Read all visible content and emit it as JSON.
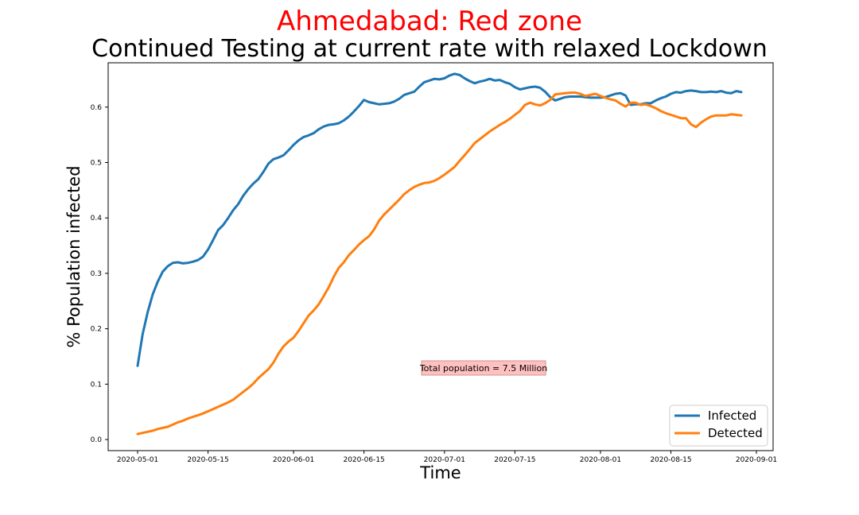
{
  "title": "Ahmedabad: Red zone",
  "subtitle": "Continued Testing at current rate with relaxed Lockdown",
  "annotation": "Total population = 7.5 Million",
  "colors": {
    "title": "#ff0000",
    "infected": "#1f77b4",
    "detected": "#ff7f0e",
    "annotation_bg": "#ffc0c0"
  },
  "chart_data": {
    "type": "line",
    "xlabel": "Time",
    "ylabel": "% Population infected",
    "ylim": [
      -0.02,
      0.68
    ],
    "yticks": [
      "0.0",
      "0.1",
      "0.2",
      "0.3",
      "0.4",
      "0.5",
      "0.6"
    ],
    "xticks": [
      "2020-05-01",
      "2020-05-15",
      "2020-06-01",
      "2020-06-15",
      "2020-07-01",
      "2020-07-15",
      "2020-08-01",
      "2020-08-15",
      "2020-09-01"
    ],
    "legend": "lower-right",
    "grid": false,
    "series": [
      {
        "name": "Infected",
        "points": [
          [
            "2020-05-01",
            0.133
          ],
          [
            "2020-05-02",
            0.19
          ],
          [
            "2020-05-03",
            0.23
          ],
          [
            "2020-05-04",
            0.262
          ],
          [
            "2020-05-05",
            0.285
          ],
          [
            "2020-05-06",
            0.303
          ],
          [
            "2020-05-07",
            0.313
          ],
          [
            "2020-05-08",
            0.319
          ],
          [
            "2020-05-09",
            0.32
          ],
          [
            "2020-05-10",
            0.318
          ],
          [
            "2020-05-11",
            0.319
          ],
          [
            "2020-05-12",
            0.321
          ],
          [
            "2020-05-13",
            0.324
          ],
          [
            "2020-05-14",
            0.33
          ],
          [
            "2020-05-15",
            0.343
          ],
          [
            "2020-05-16",
            0.36
          ],
          [
            "2020-05-17",
            0.378
          ],
          [
            "2020-05-18",
            0.387
          ],
          [
            "2020-05-19",
            0.4
          ],
          [
            "2020-05-20",
            0.414
          ],
          [
            "2020-05-21",
            0.425
          ],
          [
            "2020-05-22",
            0.44
          ],
          [
            "2020-05-23",
            0.452
          ],
          [
            "2020-05-24",
            0.462
          ],
          [
            "2020-05-25",
            0.47
          ],
          [
            "2020-05-26",
            0.483
          ],
          [
            "2020-05-27",
            0.498
          ],
          [
            "2020-05-28",
            0.506
          ],
          [
            "2020-05-29",
            0.509
          ],
          [
            "2020-05-30",
            0.513
          ],
          [
            "2020-05-31",
            0.522
          ],
          [
            "2020-06-01",
            0.532
          ],
          [
            "2020-06-02",
            0.54
          ],
          [
            "2020-06-03",
            0.546
          ],
          [
            "2020-06-04",
            0.549
          ],
          [
            "2020-06-05",
            0.553
          ],
          [
            "2020-06-06",
            0.56
          ],
          [
            "2020-06-07",
            0.565
          ],
          [
            "2020-06-08",
            0.568
          ],
          [
            "2020-06-09",
            0.569
          ],
          [
            "2020-06-10",
            0.571
          ],
          [
            "2020-06-11",
            0.576
          ],
          [
            "2020-06-12",
            0.583
          ],
          [
            "2020-06-13",
            0.592
          ],
          [
            "2020-06-14",
            0.602
          ],
          [
            "2020-06-15",
            0.613
          ],
          [
            "2020-06-16",
            0.609
          ],
          [
            "2020-06-17",
            0.607
          ],
          [
            "2020-06-18",
            0.605
          ],
          [
            "2020-06-19",
            0.606
          ],
          [
            "2020-06-20",
            0.607
          ],
          [
            "2020-06-21",
            0.61
          ],
          [
            "2020-06-22",
            0.615
          ],
          [
            "2020-06-23",
            0.622
          ],
          [
            "2020-06-24",
            0.625
          ],
          [
            "2020-06-25",
            0.628
          ],
          [
            "2020-06-26",
            0.637
          ],
          [
            "2020-06-27",
            0.645
          ],
          [
            "2020-06-28",
            0.648
          ],
          [
            "2020-06-29",
            0.651
          ],
          [
            "2020-06-30",
            0.65
          ],
          [
            "2020-07-01",
            0.652
          ],
          [
            "2020-07-02",
            0.657
          ],
          [
            "2020-07-03",
            0.66
          ],
          [
            "2020-07-04",
            0.658
          ],
          [
            "2020-07-05",
            0.652
          ],
          [
            "2020-07-06",
            0.647
          ],
          [
            "2020-07-07",
            0.643
          ],
          [
            "2020-07-08",
            0.646
          ],
          [
            "2020-07-09",
            0.648
          ],
          [
            "2020-07-10",
            0.651
          ],
          [
            "2020-07-11",
            0.648
          ],
          [
            "2020-07-12",
            0.649
          ],
          [
            "2020-07-13",
            0.645
          ],
          [
            "2020-07-14",
            0.642
          ],
          [
            "2020-07-15",
            0.636
          ],
          [
            "2020-07-16",
            0.632
          ],
          [
            "2020-07-17",
            0.634
          ],
          [
            "2020-07-18",
            0.636
          ],
          [
            "2020-07-19",
            0.637
          ],
          [
            "2020-07-20",
            0.635
          ],
          [
            "2020-07-21",
            0.628
          ],
          [
            "2020-07-22",
            0.618
          ],
          [
            "2020-07-23",
            0.612
          ],
          [
            "2020-07-24",
            0.615
          ],
          [
            "2020-07-25",
            0.618
          ],
          [
            "2020-07-26",
            0.619
          ],
          [
            "2020-07-27",
            0.619
          ],
          [
            "2020-07-28",
            0.619
          ],
          [
            "2020-07-29",
            0.618
          ],
          [
            "2020-07-30",
            0.617
          ],
          [
            "2020-07-31",
            0.617
          ],
          [
            "2020-08-01",
            0.617
          ],
          [
            "2020-08-02",
            0.618
          ],
          [
            "2020-08-03",
            0.621
          ],
          [
            "2020-08-04",
            0.624
          ],
          [
            "2020-08-05",
            0.625
          ],
          [
            "2020-08-06",
            0.621
          ],
          [
            "2020-08-07",
            0.604
          ],
          [
            "2020-08-08",
            0.605
          ],
          [
            "2020-08-09",
            0.605
          ],
          [
            "2020-08-10",
            0.607
          ],
          [
            "2020-08-11",
            0.607
          ],
          [
            "2020-08-12",
            0.612
          ],
          [
            "2020-08-13",
            0.616
          ],
          [
            "2020-08-14",
            0.619
          ],
          [
            "2020-08-15",
            0.624
          ],
          [
            "2020-08-16",
            0.627
          ],
          [
            "2020-08-17",
            0.626
          ],
          [
            "2020-08-18",
            0.629
          ],
          [
            "2020-08-19",
            0.63
          ],
          [
            "2020-08-20",
            0.629
          ],
          [
            "2020-08-21",
            0.627
          ],
          [
            "2020-08-22",
            0.627
          ],
          [
            "2020-08-23",
            0.628
          ],
          [
            "2020-08-24",
            0.627
          ],
          [
            "2020-08-25",
            0.629
          ],
          [
            "2020-08-26",
            0.626
          ],
          [
            "2020-08-27",
            0.625
          ],
          [
            "2020-08-28",
            0.629
          ],
          [
            "2020-08-29",
            0.627
          ]
        ]
      },
      {
        "name": "Detected",
        "points": [
          [
            "2020-05-01",
            0.01
          ],
          [
            "2020-05-02",
            0.012
          ],
          [
            "2020-05-03",
            0.014
          ],
          [
            "2020-05-04",
            0.016
          ],
          [
            "2020-05-05",
            0.019
          ],
          [
            "2020-05-06",
            0.021
          ],
          [
            "2020-05-07",
            0.023
          ],
          [
            "2020-05-08",
            0.027
          ],
          [
            "2020-05-09",
            0.031
          ],
          [
            "2020-05-10",
            0.034
          ],
          [
            "2020-05-11",
            0.038
          ],
          [
            "2020-05-12",
            0.041
          ],
          [
            "2020-05-13",
            0.044
          ],
          [
            "2020-05-14",
            0.047
          ],
          [
            "2020-05-15",
            0.051
          ],
          [
            "2020-05-16",
            0.055
          ],
          [
            "2020-05-17",
            0.059
          ],
          [
            "2020-05-18",
            0.063
          ],
          [
            "2020-05-19",
            0.067
          ],
          [
            "2020-05-20",
            0.072
          ],
          [
            "2020-05-21",
            0.079
          ],
          [
            "2020-05-22",
            0.086
          ],
          [
            "2020-05-23",
            0.093
          ],
          [
            "2020-05-24",
            0.101
          ],
          [
            "2020-05-25",
            0.111
          ],
          [
            "2020-05-26",
            0.119
          ],
          [
            "2020-05-27",
            0.127
          ],
          [
            "2020-05-28",
            0.139
          ],
          [
            "2020-05-29",
            0.155
          ],
          [
            "2020-05-30",
            0.168
          ],
          [
            "2020-05-31",
            0.177
          ],
          [
            "2020-06-01",
            0.184
          ],
          [
            "2020-06-02",
            0.196
          ],
          [
            "2020-06-03",
            0.21
          ],
          [
            "2020-06-04",
            0.224
          ],
          [
            "2020-06-05",
            0.233
          ],
          [
            "2020-06-06",
            0.244
          ],
          [
            "2020-06-07",
            0.259
          ],
          [
            "2020-06-08",
            0.275
          ],
          [
            "2020-06-09",
            0.294
          ],
          [
            "2020-06-10",
            0.31
          ],
          [
            "2020-06-11",
            0.32
          ],
          [
            "2020-06-12",
            0.333
          ],
          [
            "2020-06-13",
            0.342
          ],
          [
            "2020-06-14",
            0.352
          ],
          [
            "2020-06-15",
            0.36
          ],
          [
            "2020-06-16",
            0.367
          ],
          [
            "2020-06-17",
            0.379
          ],
          [
            "2020-06-18",
            0.395
          ],
          [
            "2020-06-19",
            0.406
          ],
          [
            "2020-06-20",
            0.415
          ],
          [
            "2020-06-21",
            0.424
          ],
          [
            "2020-06-22",
            0.433
          ],
          [
            "2020-06-23",
            0.443
          ],
          [
            "2020-06-24",
            0.45
          ],
          [
            "2020-06-25",
            0.456
          ],
          [
            "2020-06-26",
            0.46
          ],
          [
            "2020-06-27",
            0.463
          ],
          [
            "2020-06-28",
            0.464
          ],
          [
            "2020-06-29",
            0.467
          ],
          [
            "2020-06-30",
            0.472
          ],
          [
            "2020-07-01",
            0.478
          ],
          [
            "2020-07-02",
            0.485
          ],
          [
            "2020-07-03",
            0.492
          ],
          [
            "2020-07-04",
            0.503
          ],
          [
            "2020-07-05",
            0.513
          ],
          [
            "2020-07-06",
            0.524
          ],
          [
            "2020-07-07",
            0.535
          ],
          [
            "2020-07-08",
            0.542
          ],
          [
            "2020-07-09",
            0.549
          ],
          [
            "2020-07-10",
            0.556
          ],
          [
            "2020-07-11",
            0.562
          ],
          [
            "2020-07-12",
            0.568
          ],
          [
            "2020-07-13",
            0.573
          ],
          [
            "2020-07-14",
            0.579
          ],
          [
            "2020-07-15",
            0.586
          ],
          [
            "2020-07-16",
            0.593
          ],
          [
            "2020-07-17",
            0.604
          ],
          [
            "2020-07-18",
            0.608
          ],
          [
            "2020-07-19",
            0.605
          ],
          [
            "2020-07-20",
            0.603
          ],
          [
            "2020-07-21",
            0.607
          ],
          [
            "2020-07-22",
            0.613
          ],
          [
            "2020-07-23",
            0.623
          ],
          [
            "2020-07-24",
            0.624
          ],
          [
            "2020-07-25",
            0.625
          ],
          [
            "2020-07-26",
            0.626
          ],
          [
            "2020-07-27",
            0.626
          ],
          [
            "2020-07-28",
            0.624
          ],
          [
            "2020-07-29",
            0.62
          ],
          [
            "2020-07-30",
            0.622
          ],
          [
            "2020-07-31",
            0.624
          ],
          [
            "2020-08-01",
            0.62
          ],
          [
            "2020-08-02",
            0.617
          ],
          [
            "2020-08-03",
            0.614
          ],
          [
            "2020-08-04",
            0.612
          ],
          [
            "2020-08-05",
            0.606
          ],
          [
            "2020-08-06",
            0.601
          ],
          [
            "2020-08-07",
            0.608
          ],
          [
            "2020-08-08",
            0.608
          ],
          [
            "2020-08-09",
            0.604
          ],
          [
            "2020-08-10",
            0.605
          ],
          [
            "2020-08-11",
            0.602
          ],
          [
            "2020-08-12",
            0.598
          ],
          [
            "2020-08-13",
            0.593
          ],
          [
            "2020-08-14",
            0.589
          ],
          [
            "2020-08-15",
            0.586
          ],
          [
            "2020-08-16",
            0.583
          ],
          [
            "2020-08-17",
            0.58
          ],
          [
            "2020-08-18",
            0.58
          ],
          [
            "2020-08-19",
            0.569
          ],
          [
            "2020-08-20",
            0.564
          ],
          [
            "2020-08-21",
            0.572
          ],
          [
            "2020-08-22",
            0.578
          ],
          [
            "2020-08-23",
            0.583
          ],
          [
            "2020-08-24",
            0.585
          ],
          [
            "2020-08-25",
            0.585
          ],
          [
            "2020-08-26",
            0.585
          ],
          [
            "2020-08-27",
            0.587
          ],
          [
            "2020-08-28",
            0.586
          ],
          [
            "2020-08-29",
            0.585
          ]
        ]
      }
    ]
  }
}
